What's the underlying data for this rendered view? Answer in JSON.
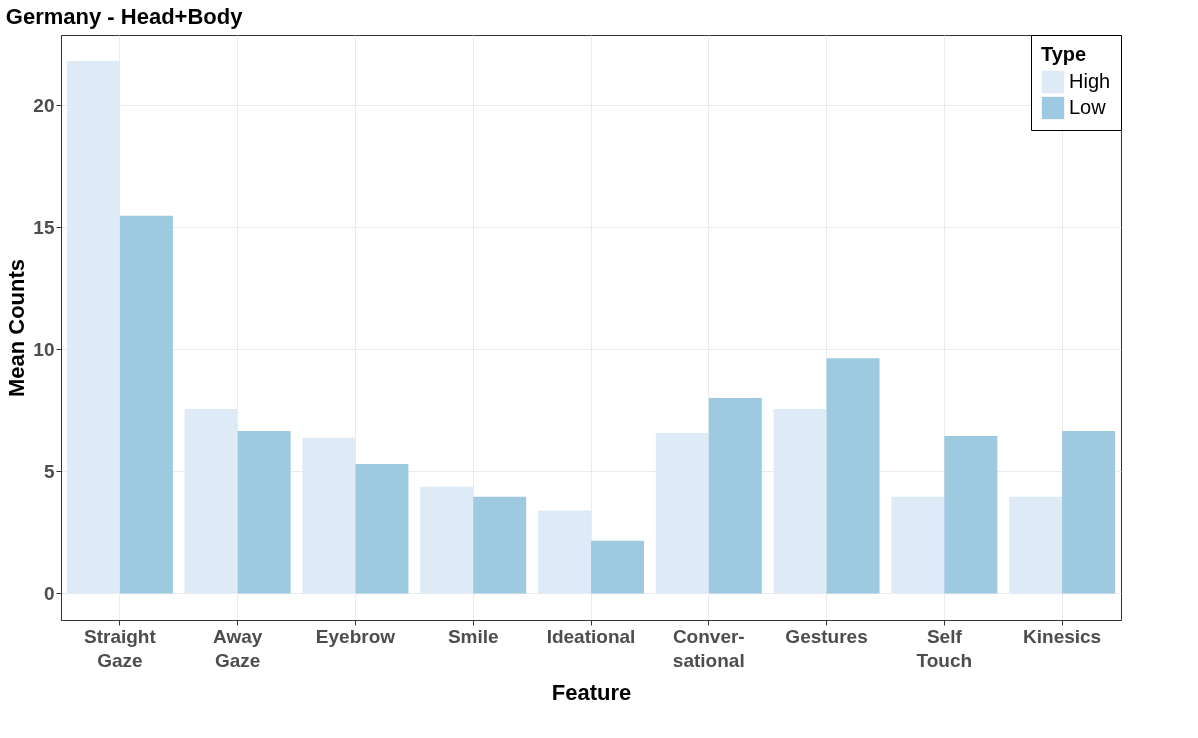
{
  "chart_data": {
    "type": "bar",
    "title": "Germany - Head+Body",
    "xlabel": "Feature",
    "ylabel": "Mean Counts",
    "legend_title": "Type",
    "categories": [
      "Straight\nGaze",
      "Away\nGaze",
      "Eyebrow",
      "Smile",
      "Ideational",
      "Conver-\nsational",
      "Gestures",
      "Self\nTouch",
      "Kinesics"
    ],
    "series": [
      {
        "name": "High",
        "color": "#deebf7",
        "values": [
          21.8,
          7.55,
          6.37,
          4.37,
          3.39,
          6.57,
          7.55,
          3.96,
          3.96
        ]
      },
      {
        "name": "Low",
        "color": "#9ecae1",
        "values": [
          15.47,
          6.65,
          5.3,
          3.96,
          2.16,
          8.0,
          9.63,
          6.45,
          6.65
        ]
      }
    ],
    "ylim": [
      -1.09,
      22.87
    ],
    "yticks": [
      0,
      5,
      10,
      15,
      20
    ],
    "grid": true,
    "legend": "top right"
  }
}
